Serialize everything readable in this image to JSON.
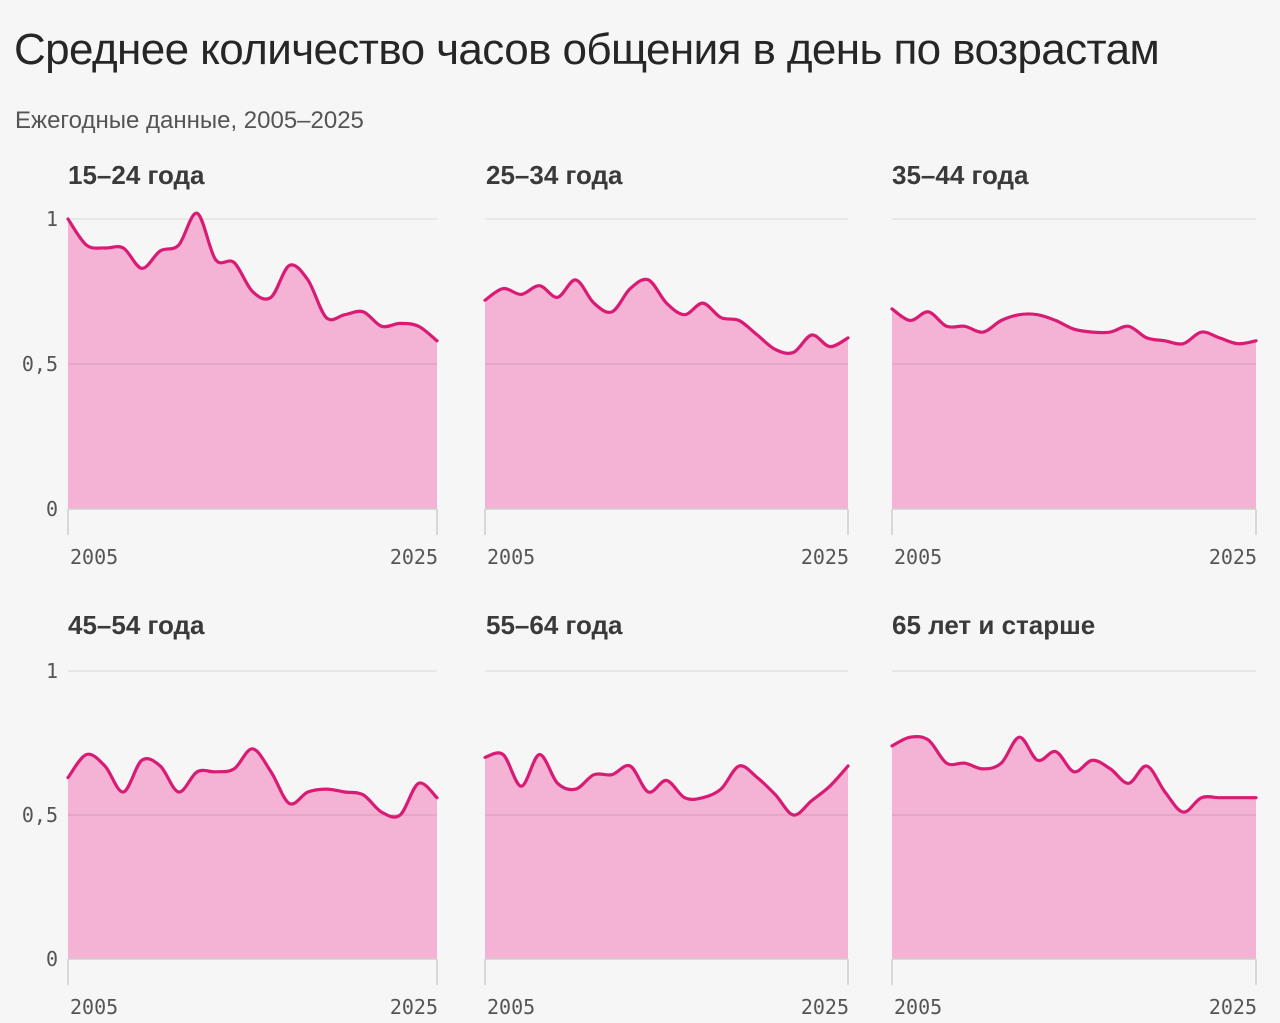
{
  "title": "Среднее количество часов общения в день по возрастам",
  "subtitle": "Ежегодные данные, 2005–2025",
  "colors": {
    "line": "#d81b74",
    "area": "#f4b3d5",
    "grid": "#d9d9d9",
    "baseline": "#cfcfcf"
  },
  "chart_data": [
    {
      "type": "area",
      "title": "15–24 года",
      "x": [
        2005,
        2006,
        2007,
        2008,
        2009,
        2010,
        2011,
        2012,
        2013,
        2014,
        2015,
        2016,
        2017,
        2018,
        2019,
        2020,
        2021,
        2022,
        2023,
        2024,
        2025
      ],
      "values": [
        1.0,
        0.91,
        0.9,
        0.9,
        0.83,
        0.89,
        0.91,
        1.02,
        0.86,
        0.85,
        0.75,
        0.73,
        0.84,
        0.79,
        0.66,
        0.67,
        0.68,
        0.63,
        0.64,
        0.63,
        0.58
      ],
      "ylim": [
        0,
        1
      ],
      "yticks": [
        "0",
        "0,5",
        "1"
      ],
      "xticks": [
        "2005",
        "2025"
      ]
    },
    {
      "type": "area",
      "title": "25–34 года",
      "x": [
        2005,
        2006,
        2007,
        2008,
        2009,
        2010,
        2011,
        2012,
        2013,
        2014,
        2015,
        2016,
        2017,
        2018,
        2019,
        2020,
        2021,
        2022,
        2023,
        2024,
        2025
      ],
      "values": [
        0.72,
        0.76,
        0.74,
        0.77,
        0.73,
        0.79,
        0.71,
        0.68,
        0.76,
        0.79,
        0.71,
        0.67,
        0.71,
        0.66,
        0.65,
        0.6,
        0.55,
        0.54,
        0.6,
        0.56,
        0.59
      ],
      "ylim": [
        0,
        1
      ],
      "yticks": [
        "0",
        "0,5",
        "1"
      ],
      "xticks": [
        "2005",
        "2025"
      ]
    },
    {
      "type": "area",
      "title": "35–44 года",
      "x": [
        2005,
        2006,
        2007,
        2008,
        2009,
        2010,
        2011,
        2012,
        2013,
        2014,
        2015,
        2016,
        2017,
        2018,
        2019,
        2020,
        2021,
        2022,
        2023,
        2024,
        2025
      ],
      "values": [
        0.69,
        0.65,
        0.68,
        0.63,
        0.63,
        0.61,
        0.65,
        0.67,
        0.67,
        0.65,
        0.62,
        0.61,
        0.61,
        0.63,
        0.59,
        0.58,
        0.57,
        0.61,
        0.59,
        0.57,
        0.58
      ],
      "ylim": [
        0,
        1
      ],
      "yticks": [
        "0",
        "0,5",
        "1"
      ],
      "xticks": [
        "2005",
        "2025"
      ]
    },
    {
      "type": "area",
      "title": "45–54 года",
      "x": [
        2005,
        2006,
        2007,
        2008,
        2009,
        2010,
        2011,
        2012,
        2013,
        2014,
        2015,
        2016,
        2017,
        2018,
        2019,
        2020,
        2021,
        2022,
        2023,
        2024,
        2025
      ],
      "values": [
        0.63,
        0.71,
        0.67,
        0.58,
        0.69,
        0.67,
        0.58,
        0.65,
        0.65,
        0.66,
        0.73,
        0.65,
        0.54,
        0.58,
        0.59,
        0.58,
        0.57,
        0.51,
        0.5,
        0.61,
        0.56
      ],
      "ylim": [
        0,
        1
      ],
      "yticks": [
        "0",
        "0,5",
        "1"
      ],
      "xticks": [
        "2005",
        "2025"
      ]
    },
    {
      "type": "area",
      "title": "55–64 года",
      "x": [
        2005,
        2006,
        2007,
        2008,
        2009,
        2010,
        2011,
        2012,
        2013,
        2014,
        2015,
        2016,
        2017,
        2018,
        2019,
        2020,
        2021,
        2022,
        2023,
        2024,
        2025
      ],
      "values": [
        0.7,
        0.71,
        0.6,
        0.71,
        0.61,
        0.59,
        0.64,
        0.64,
        0.67,
        0.58,
        0.62,
        0.56,
        0.56,
        0.59,
        0.67,
        0.63,
        0.57,
        0.5,
        0.55,
        0.6,
        0.67
      ],
      "ylim": [
        0,
        1
      ],
      "yticks": [
        "0",
        "0,5",
        "1"
      ],
      "xticks": [
        "2005",
        "2025"
      ]
    },
    {
      "type": "area",
      "title": "65 лет и старше",
      "x": [
        2005,
        2006,
        2007,
        2008,
        2009,
        2010,
        2011,
        2012,
        2013,
        2014,
        2015,
        2016,
        2017,
        2018,
        2019,
        2020,
        2021,
        2022,
        2023,
        2024,
        2025
      ],
      "values": [
        0.74,
        0.77,
        0.76,
        0.68,
        0.68,
        0.66,
        0.68,
        0.77,
        0.69,
        0.72,
        0.65,
        0.69,
        0.66,
        0.61,
        0.67,
        0.58,
        0.51,
        0.56,
        0.56,
        0.56,
        0.56
      ],
      "ylim": [
        0,
        1
      ],
      "yticks": [
        "0",
        "0,5",
        "1"
      ],
      "xticks": [
        "2005",
        "2025"
      ]
    }
  ]
}
